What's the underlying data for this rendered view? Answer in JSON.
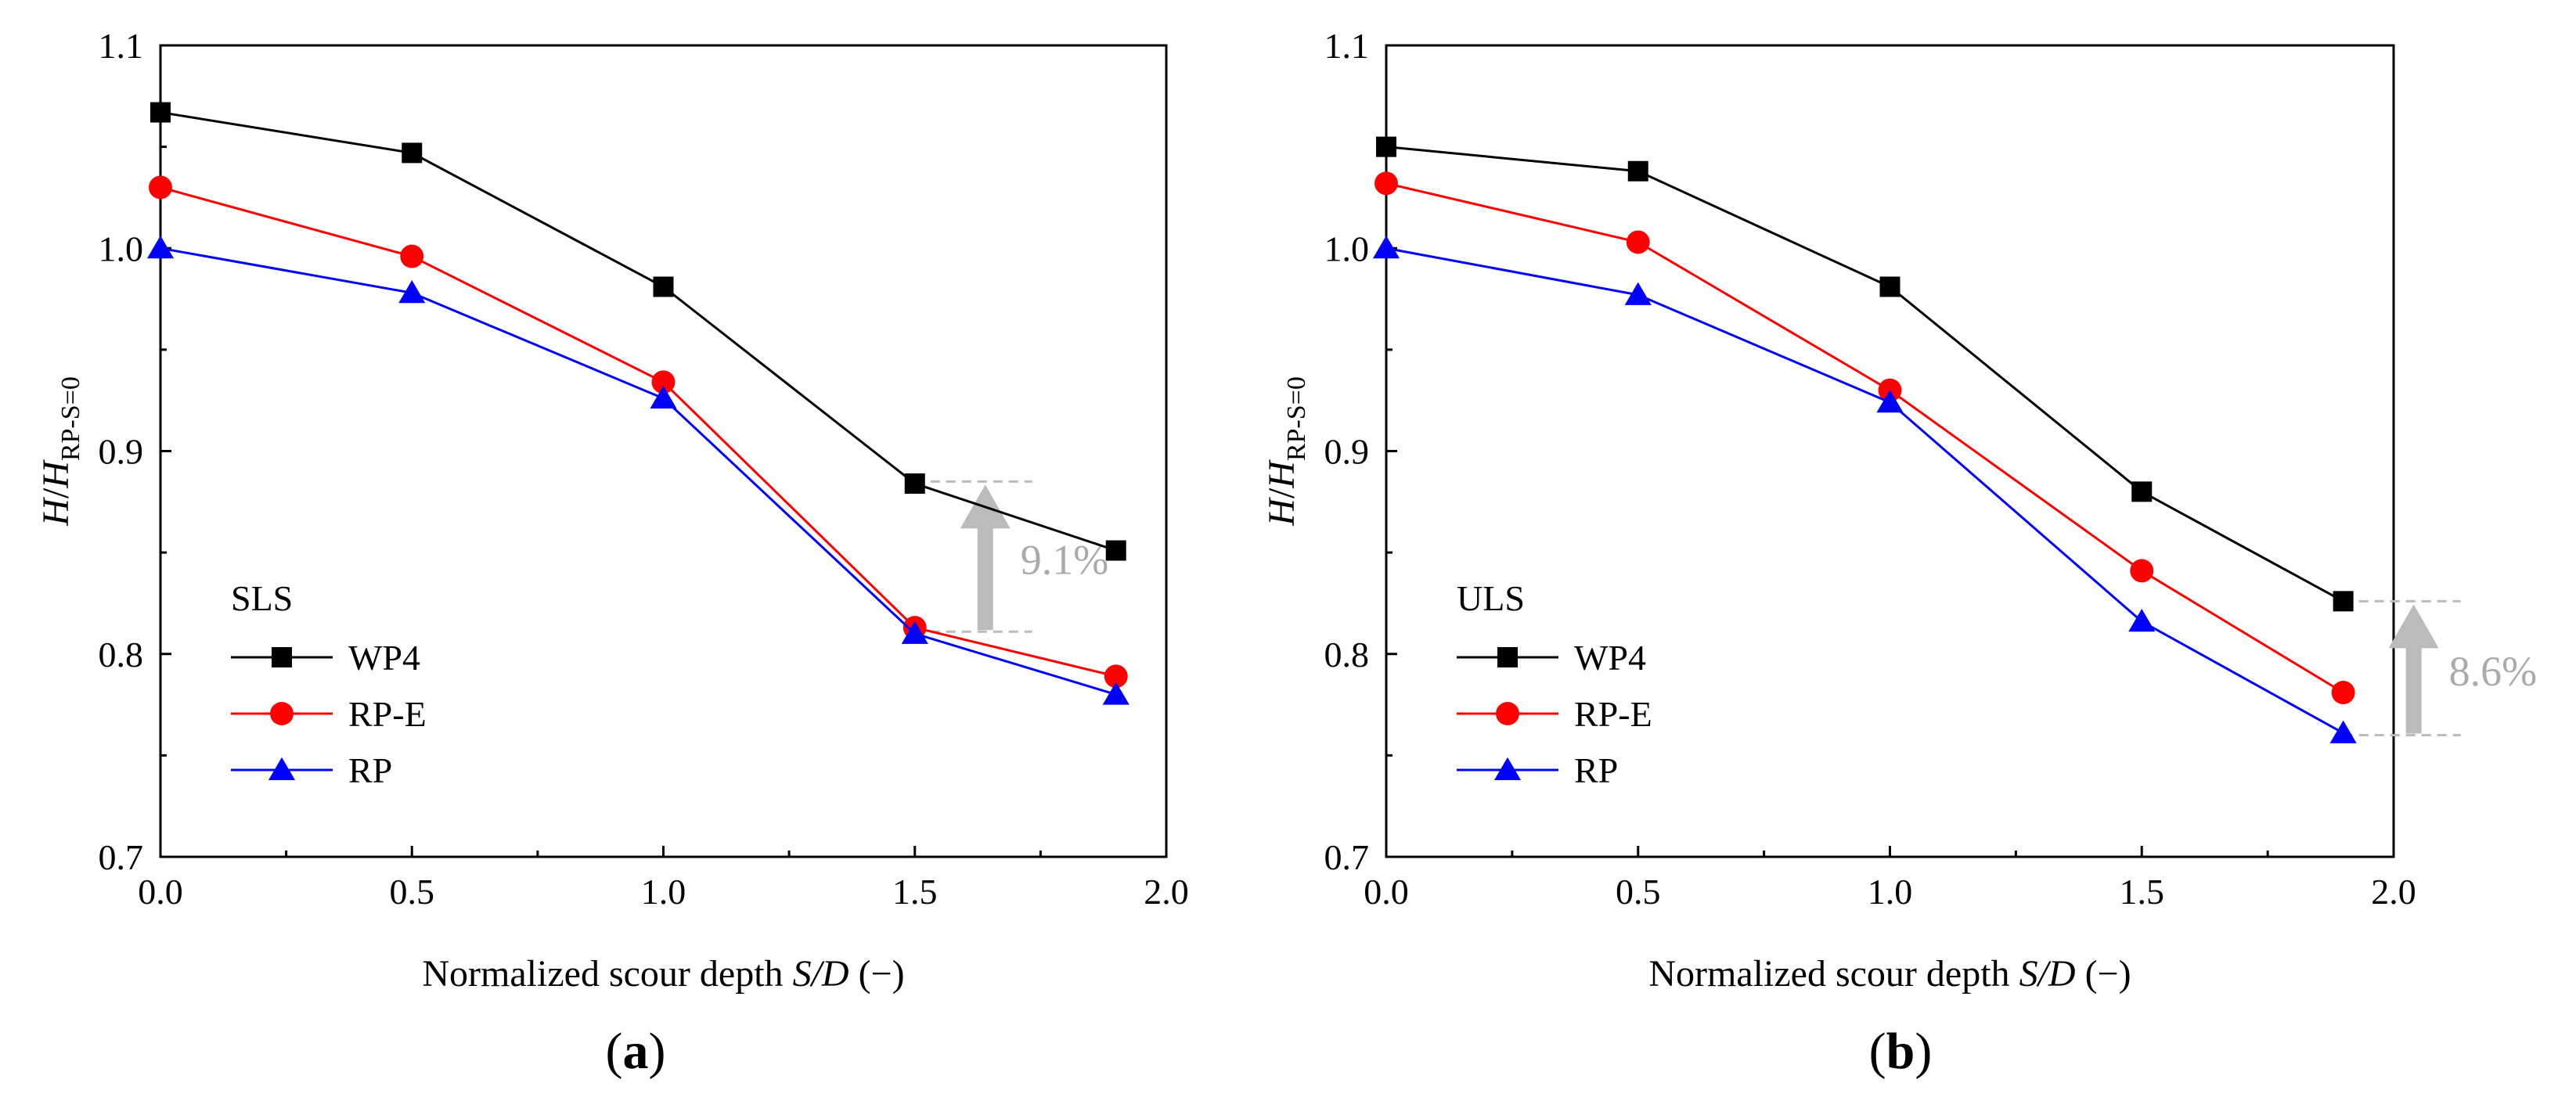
{
  "figure": {
    "panel_a_prefix": "(",
    "panel_a_letter": "a",
    "panel_a_suffix": ")",
    "panel_b_prefix": "(",
    "panel_b_letter": "b",
    "panel_b_suffix": ")"
  },
  "colors": {
    "WP4": "#000000",
    "RP-E": "#ff0000",
    "RP": "#0000ff",
    "annotation": "#bbbbbb"
  },
  "chart_data": [
    {
      "id": "a",
      "type": "line",
      "xlabel_prefix": "Normalized scour depth ",
      "xlabel_italic": "S/D",
      "xlabel_suffix": " (−)",
      "ylabel_italic_1": "H",
      "ylabel_mid": "/",
      "ylabel_italic_2": "H",
      "ylabel_sub": "RP-S=0",
      "xlim": [
        0,
        2.0
      ],
      "ylim": [
        0.7,
        1.1
      ],
      "x_ticks": [
        0,
        0.5,
        1.0,
        1.5,
        2.0
      ],
      "x_tick_labels": [
        "0.0",
        "0.5",
        "1.0",
        "1.5",
        "2.0"
      ],
      "y_ticks": [
        0.7,
        0.8,
        0.9,
        1.0,
        1.1
      ],
      "y_tick_labels": [
        "0.7",
        "0.8",
        "0.9",
        "1.0",
        "1.1"
      ],
      "legend_title": "SLS",
      "legend_position": "bottom-left",
      "x": [
        0,
        0.5,
        1.0,
        1.5,
        1.9
      ],
      "series": [
        {
          "name": "WP4",
          "marker": "square",
          "values": [
            1.067,
            1.047,
            0.981,
            0.884,
            0.851
          ]
        },
        {
          "name": "RP-E",
          "marker": "circle",
          "values": [
            1.03,
            0.996,
            0.934,
            0.813,
            0.789
          ]
        },
        {
          "name": "RP",
          "marker": "triangle",
          "values": [
            1.0,
            0.978,
            0.926,
            0.81,
            0.78
          ]
        }
      ],
      "annotation": {
        "text": "9.1%",
        "x": 1.5,
        "from": 0.811,
        "to": 0.885
      }
    },
    {
      "id": "b",
      "type": "line",
      "xlabel_prefix": "Normalized scour depth ",
      "xlabel_italic": "S/D",
      "xlabel_suffix": " (−)",
      "ylabel_italic_1": "H",
      "ylabel_mid": "/",
      "ylabel_italic_2": "H",
      "ylabel_sub": "RP-S=0",
      "xlim": [
        0,
        2.0
      ],
      "ylim": [
        0.7,
        1.1
      ],
      "x_ticks": [
        0,
        0.5,
        1.0,
        1.5,
        2.0
      ],
      "x_tick_labels": [
        "0.0",
        "0.5",
        "1.0",
        "1.5",
        "2.0"
      ],
      "y_ticks": [
        0.7,
        0.8,
        0.9,
        1.0,
        1.1
      ],
      "y_tick_labels": [
        "0.7",
        "0.8",
        "0.9",
        "1.0",
        "1.1"
      ],
      "legend_title": "ULS",
      "legend_position": "bottom-left",
      "x": [
        0,
        0.5,
        1.0,
        1.5,
        1.9
      ],
      "series": [
        {
          "name": "WP4",
          "marker": "square",
          "values": [
            1.05,
            1.038,
            0.981,
            0.88,
            0.826
          ]
        },
        {
          "name": "RP-E",
          "marker": "circle",
          "values": [
            1.032,
            1.003,
            0.93,
            0.841,
            0.781
          ]
        },
        {
          "name": "RP",
          "marker": "triangle",
          "values": [
            1.0,
            0.977,
            0.924,
            0.816,
            0.761
          ]
        }
      ],
      "annotation": {
        "text": "8.6%",
        "x": 1.9,
        "from": 0.76,
        "to": 0.826
      }
    }
  ]
}
